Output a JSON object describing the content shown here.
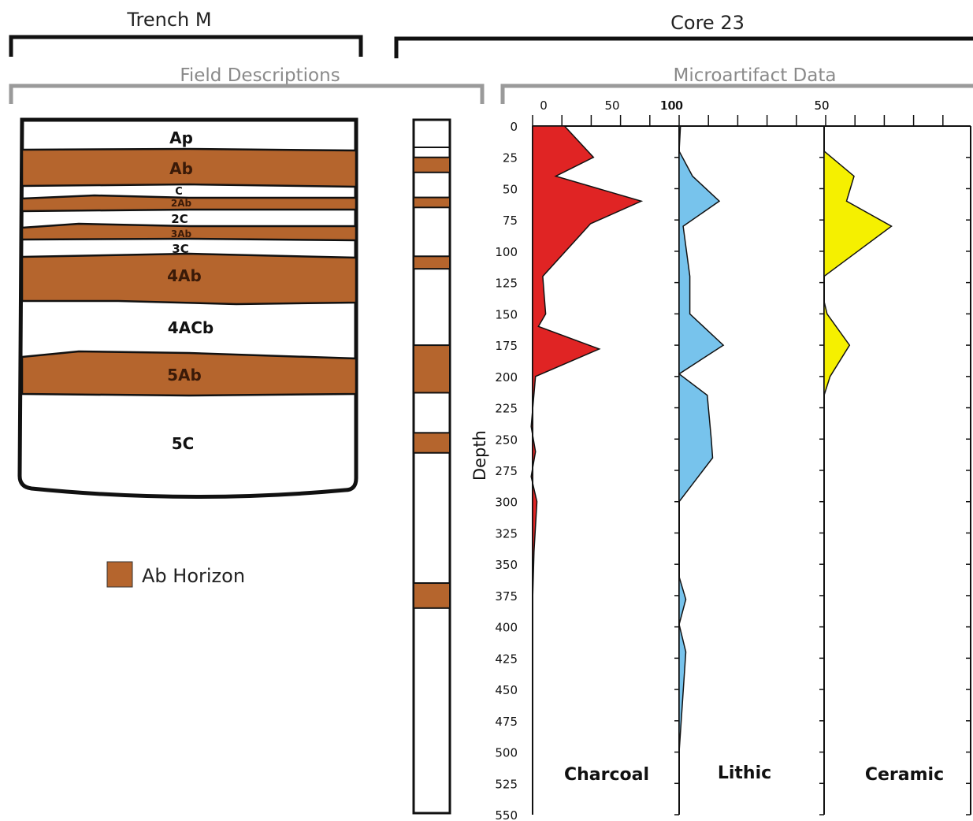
{
  "headers": {
    "trench": "Trench M",
    "core": "Core 23",
    "field": "Field Descriptions",
    "micro": "Microartifact Data"
  },
  "trench_layers": [
    {
      "label": "Ap",
      "ab": false
    },
    {
      "label": "Ab",
      "ab": true
    },
    {
      "label": "C",
      "ab": false
    },
    {
      "label": "2Ab",
      "ab": true
    },
    {
      "label": "2C",
      "ab": false
    },
    {
      "label": "3Ab",
      "ab": true
    },
    {
      "label": "3C",
      "ab": false
    },
    {
      "label": "4Ab",
      "ab": true
    },
    {
      "label": "4ACb",
      "ab": false
    },
    {
      "label": "5Ab",
      "ab": true
    },
    {
      "label": "5C",
      "ab": false
    }
  ],
  "core_ab_depths": [
    [
      25,
      37
    ],
    [
      57,
      65
    ],
    [
      104,
      114
    ],
    [
      175,
      213
    ],
    [
      245,
      261
    ],
    [
      365,
      385
    ]
  ],
  "legend": {
    "label": "Ab Horizon",
    "color": "#b5652d"
  },
  "colors": {
    "ab": "#b5652d",
    "charcoal": "#e02424",
    "lithic": "#77c3ec",
    "ceramic": "#f5f000"
  },
  "chart_data": {
    "type": "area",
    "y_axis": {
      "label": "Depth",
      "range": [
        0,
        550
      ],
      "ticks": [
        0,
        25,
        50,
        75,
        100,
        125,
        150,
        175,
        200,
        225,
        250,
        275,
        300,
        325,
        350,
        375,
        400,
        425,
        450,
        475,
        500,
        525,
        550
      ]
    },
    "series": [
      {
        "name": "Charcoal",
        "scale_labels": [
          "0",
          "50",
          "100"
        ],
        "scale_range": [
          0,
          100
        ],
        "points": [
          [
            0,
            22
          ],
          [
            25,
            42
          ],
          [
            40,
            16
          ],
          [
            60,
            75
          ],
          [
            78,
            40
          ],
          [
            120,
            7
          ],
          [
            135,
            8
          ],
          [
            150,
            9
          ],
          [
            160,
            4
          ],
          [
            178,
            46
          ],
          [
            200,
            2
          ],
          [
            240,
            -1
          ],
          [
            260,
            2
          ],
          [
            280,
            -1
          ],
          [
            300,
            3
          ],
          [
            340,
            1
          ],
          [
            380,
            0
          ],
          [
            550,
            0
          ]
        ]
      },
      {
        "name": "Lithic",
        "scale_labels": [
          "100",
          "50"
        ],
        "scale_range": [
          0,
          100
        ],
        "points": [
          [
            0,
            1
          ],
          [
            20,
            0
          ],
          [
            40,
            10
          ],
          [
            60,
            30
          ],
          [
            80,
            3
          ],
          [
            120,
            8
          ],
          [
            150,
            8
          ],
          [
            175,
            33
          ],
          [
            198,
            0
          ],
          [
            215,
            21
          ],
          [
            250,
            24
          ],
          [
            265,
            25
          ],
          [
            300,
            0
          ],
          [
            360,
            0
          ],
          [
            378,
            5
          ],
          [
            398,
            0
          ],
          [
            420,
            5
          ],
          [
            500,
            0
          ]
        ]
      },
      {
        "name": "Ceramic",
        "scale_labels": [
          "50"
        ],
        "scale_range": [
          0,
          100
        ],
        "points": [
          [
            20,
            0
          ],
          [
            40,
            20
          ],
          [
            60,
            15
          ],
          [
            80,
            45
          ],
          [
            120,
            0
          ],
          [
            140,
            0
          ],
          [
            150,
            2
          ],
          [
            175,
            17
          ],
          [
            200,
            4
          ],
          [
            215,
            0
          ]
        ]
      }
    ]
  }
}
